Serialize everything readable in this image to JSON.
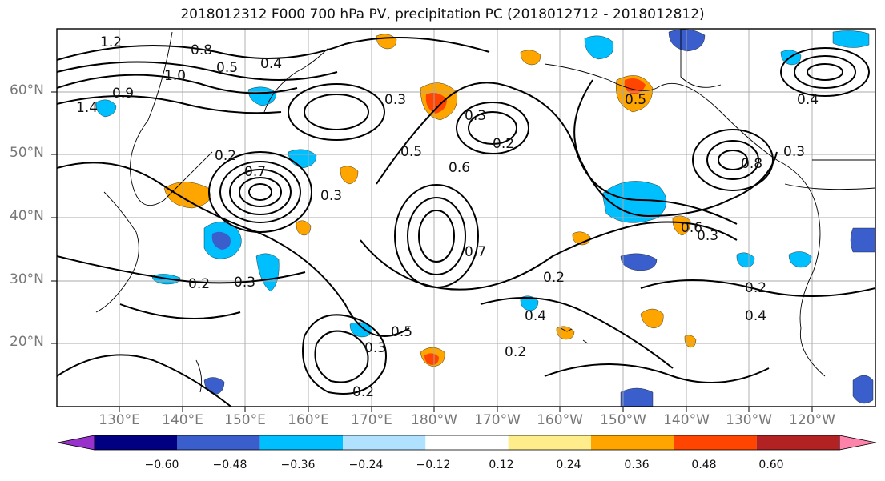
{
  "title": "2018012312 F000 700 hPa PV, precipitation PC (2018012712 - 2018012812)",
  "lat_labels": [
    "60°N",
    "50°N",
    "40°N",
    "30°N",
    "20°N"
  ],
  "lon_labels": [
    "130°E",
    "140°E",
    "150°E",
    "160°E",
    "170°E",
    "180°W",
    "170°W",
    "160°W",
    "150°W",
    "140°W",
    "130°W",
    "120°W"
  ],
  "contour_labels": [
    "1.2",
    "0.8",
    "1.4",
    "0.5",
    "0.4",
    "0.3",
    "0.2",
    "0.7",
    "0.6",
    "1.0",
    "0.9",
    "0.2",
    "0.3",
    "0.5",
    "0.8",
    "0.7",
    "0.2",
    "0.3",
    "0.4",
    "0.6",
    "0.4",
    "0.3",
    "0.5",
    "0.3",
    "0.2",
    "0.2",
    "0.4",
    "0.2",
    "0.5",
    "0.3",
    "0.2",
    "0.3"
  ],
  "colorbar": {
    "labels": [
      "−0.60",
      "−0.48",
      "−0.36",
      "−0.24",
      "−0.12",
      "0.12",
      "0.24",
      "0.36",
      "0.48",
      "0.60"
    ],
    "colors": [
      "#9932cc",
      "#000080",
      "#3a5fcd",
      "#00bfff",
      "#b0e2ff",
      "#ffffff",
      "#ffec8b",
      "#ffa500",
      "#ff4500",
      "#b22222",
      "#ff82ab"
    ]
  }
}
